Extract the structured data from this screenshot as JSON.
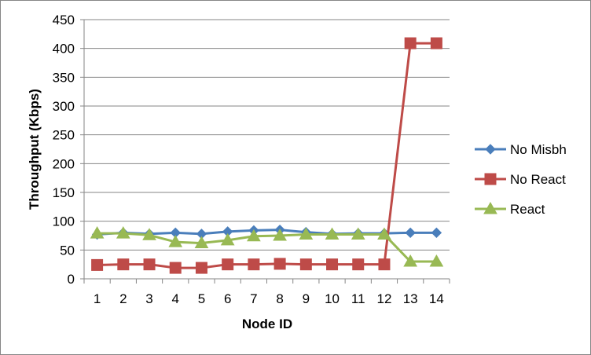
{
  "chart_data": {
    "type": "line",
    "title": "",
    "xlabel": "Node ID",
    "ylabel": "Throughput (Kbps)",
    "categories": [
      "1",
      "2",
      "3",
      "4",
      "5",
      "6",
      "7",
      "8",
      "9",
      "10",
      "11",
      "12",
      "13",
      "14"
    ],
    "ylim": [
      0,
      450
    ],
    "yticks": [
      0,
      50,
      100,
      150,
      200,
      250,
      300,
      350,
      400,
      450
    ],
    "grid": "horizontal",
    "legend_position": "right",
    "series": [
      {
        "name": "No Misbh",
        "color": "#4A7EBB",
        "marker": "diamond",
        "values": [
          77,
          80,
          78,
          80,
          78,
          82,
          84,
          85,
          81,
          78,
          79,
          79,
          80,
          80
        ]
      },
      {
        "name": "No React",
        "color": "#BE4B48",
        "marker": "square",
        "values": [
          24,
          25,
          25,
          19,
          19,
          25,
          25,
          26,
          25,
          25,
          25,
          25,
          409,
          409
        ]
      },
      {
        "name": "React",
        "color": "#98B954",
        "marker": "triangle",
        "values": [
          79,
          79,
          76,
          64,
          62,
          67,
          74,
          75,
          77,
          77,
          77,
          77,
          30,
          30
        ]
      }
    ]
  }
}
